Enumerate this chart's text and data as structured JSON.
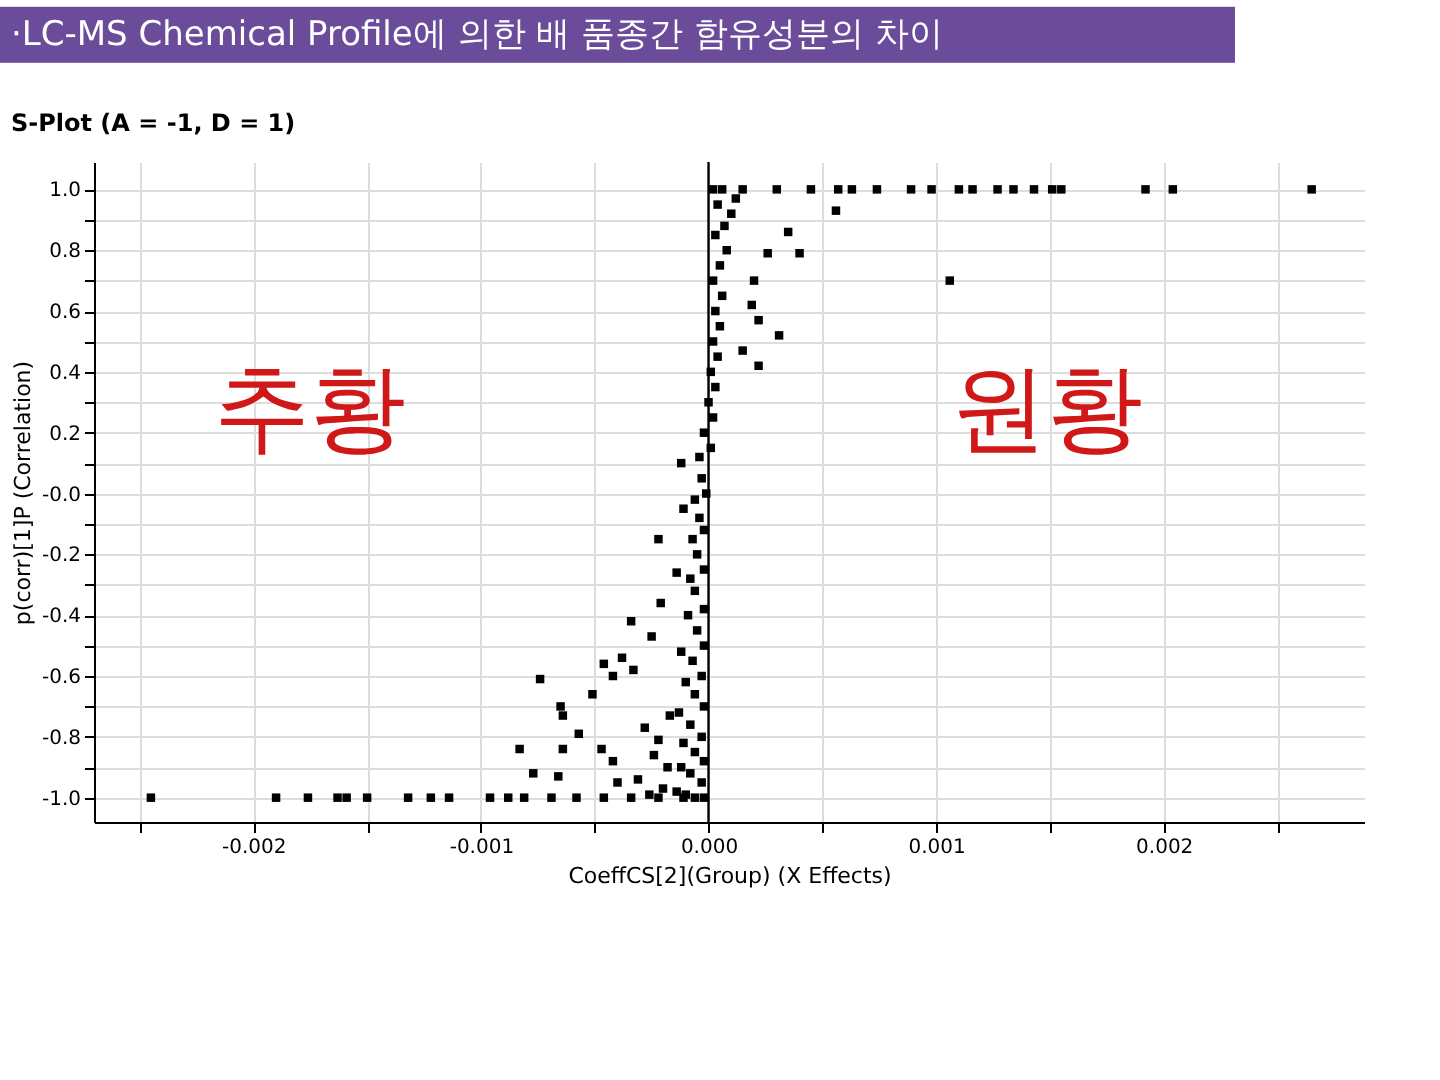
{
  "chart_data": {
    "type": "scatter",
    "title": "·LC-MS Chemical Profile에 의한 배 품종간 함유성분의 차이",
    "subtitle": "S-Plot (A = -1, D = 1)",
    "xlabel": "CoeffCS[2](Group) (X Effects)",
    "ylabel": "p(corr)[1]P (Correlation)",
    "annotations": [
      "추황",
      "원황"
    ],
    "series": [
      {
        "color": "#000000",
        "x": [
          0.00265,
          0.00204,
          0.00192,
          0.00155,
          0.00151,
          0.00143,
          0.00134,
          0.00127,
          0.00116,
          0.0011,
          0.00098,
          0.00089,
          0.00074,
          0.00063,
          0.00057,
          0.00045,
          0.0003,
          0.00015,
          0.00106,
          0.00035,
          0.0004,
          0.00026,
          0.0002,
          0.00019,
          0.00022,
          0.00031,
          0.00022,
          0.00015,
          0.00056,
          -0.00245,
          -0.0019,
          -0.00176,
          -0.00163,
          -0.00159,
          -0.0015,
          -0.00132,
          -0.00122,
          -0.00114,
          -0.00096,
          -0.00088,
          -0.00081,
          -0.00069,
          -0.00058,
          -0.00046,
          -0.00034,
          -0.00022,
          -0.00011,
          -0.00074,
          -0.00065,
          -0.00064,
          -0.00057,
          -0.00083,
          -0.00064,
          -0.00047,
          -0.00077,
          -0.00066,
          -0.00042,
          -0.00051,
          -0.00046,
          -0.00038,
          -0.00042,
          -0.00033,
          -0.00034,
          -0.00021,
          -0.00025,
          -0.00022,
          -0.00011,
          -0.00012,
          -0.00014,
          -0.00017,
          -0.00028,
          -0.00022,
          -0.00031,
          -0.0004,
          -0.0002,
          -0.00026,
          -0.00018,
          -0.00024,
          -2e-05,
          -6e-05,
          -0.0001,
          -0.00014,
          -3e-05,
          -8e-05,
          -0.00012,
          -2e-05,
          -6e-05,
          -0.00011,
          -3e-05,
          -8e-05,
          -0.00013,
          -2e-05,
          -6e-05,
          -0.0001,
          -3e-05,
          -7e-05,
          -0.00012,
          -2e-05,
          -5e-05,
          -9e-05,
          -2e-05,
          -6e-05,
          -8e-05,
          -2e-05,
          -5e-05,
          -7e-05,
          -2e-05,
          -4e-05,
          -6e-05,
          -1e-05,
          -3e-05,
          -4e-05,
          1e-05,
          -2e-05,
          2e-05,
          0.0,
          3e-05,
          1e-05,
          4e-05,
          2e-05,
          5e-05,
          3e-05,
          6e-05,
          2e-05,
          5e-05,
          8e-05,
          3e-05,
          7e-05,
          0.0001,
          4e-05,
          0.00012,
          2e-05,
          6e-05
        ],
        "values": [
          1.0,
          1.0,
          1.0,
          1.0,
          1.0,
          1.0,
          1.0,
          1.0,
          1.0,
          1.0,
          1.0,
          1.0,
          1.0,
          1.0,
          1.0,
          1.0,
          1.0,
          1.0,
          0.7,
          0.86,
          0.79,
          0.79,
          0.7,
          0.62,
          0.57,
          0.52,
          0.42,
          0.47,
          0.93,
          -1.0,
          -1.0,
          -1.0,
          -1.0,
          -1.0,
          -1.0,
          -1.0,
          -1.0,
          -1.0,
          -1.0,
          -1.0,
          -1.0,
          -1.0,
          -1.0,
          -1.0,
          -1.0,
          -1.0,
          -1.0,
          -0.61,
          -0.7,
          -0.73,
          -0.79,
          -0.84,
          -0.84,
          -0.84,
          -0.92,
          -0.93,
          -0.88,
          -0.66,
          -0.56,
          -0.54,
          -0.6,
          -0.58,
          -0.42,
          -0.36,
          -0.47,
          -0.15,
          -0.05,
          0.1,
          -0.26,
          -0.73,
          -0.77,
          -0.81,
          -0.94,
          -0.95,
          -0.97,
          -0.99,
          -0.9,
          -0.86,
          -1.0,
          -1.0,
          -0.99,
          -0.98,
          -0.95,
          -0.92,
          -0.9,
          -0.88,
          -0.85,
          -0.82,
          -0.8,
          -0.76,
          -0.72,
          -0.7,
          -0.66,
          -0.62,
          -0.6,
          -0.55,
          -0.52,
          -0.5,
          -0.45,
          -0.4,
          -0.38,
          -0.32,
          -0.28,
          -0.25,
          -0.2,
          -0.15,
          -0.12,
          -0.08,
          -0.02,
          0.0,
          0.05,
          0.12,
          0.15,
          0.2,
          0.25,
          0.3,
          0.35,
          0.4,
          0.45,
          0.5,
          0.55,
          0.6,
          0.65,
          0.7,
          0.75,
          0.8,
          0.85,
          0.88,
          0.92,
          0.95,
          0.97,
          1.0,
          1.0
        ]
      }
    ],
    "marker": "square",
    "xlim": [
      -0.0027,
      0.00288
    ],
    "ylim": [
      -1.08,
      1.09
    ],
    "xticks": [
      {
        "value": -0.0025,
        "label": null
      },
      {
        "value": -0.002,
        "label": "-0.002"
      },
      {
        "value": -0.0015,
        "label": null
      },
      {
        "value": -0.001,
        "label": "-0.001"
      },
      {
        "value": -0.0005,
        "label": null
      },
      {
        "value": 0,
        "label": "0.000"
      },
      {
        "value": 0.0005,
        "label": null
      },
      {
        "value": 0.001,
        "label": "0.001"
      },
      {
        "value": 0.0015,
        "label": null
      },
      {
        "value": 0.002,
        "label": "0.002"
      },
      {
        "value": 0.0025,
        "label": null
      }
    ],
    "yticks": [
      {
        "value": -1.0,
        "label": "-1.0"
      },
      {
        "value": -0.9,
        "label": null
      },
      {
        "value": -0.8,
        "label": "-0.8"
      },
      {
        "value": -0.7,
        "label": null
      },
      {
        "value": -0.6,
        "label": "-0.6"
      },
      {
        "value": -0.5,
        "label": null
      },
      {
        "value": -0.4,
        "label": "-0.4"
      },
      {
        "value": -0.3,
        "label": null
      },
      {
        "value": -0.2,
        "label": "-0.2"
      },
      {
        "value": -0.1,
        "label": null
      },
      {
        "value": 0,
        "label": "-0.0"
      },
      {
        "value": 0.1,
        "label": null
      },
      {
        "value": 0.2,
        "label": "0.2"
      },
      {
        "value": 0.3,
        "label": null
      },
      {
        "value": 0.4,
        "label": "0.4"
      },
      {
        "value": 0.5,
        "label": null
      },
      {
        "value": 0.6,
        "label": "0.6"
      },
      {
        "value": 0.7,
        "label": null
      },
      {
        "value": 0.8,
        "label": "0.8"
      },
      {
        "value": 0.9,
        "label": null
      },
      {
        "value": 1.0,
        "label": "1.0"
      }
    ],
    "ref_lines": [
      {
        "axis": "x",
        "value": 0,
        "color": "#000000"
      }
    ],
    "grid": true
  }
}
